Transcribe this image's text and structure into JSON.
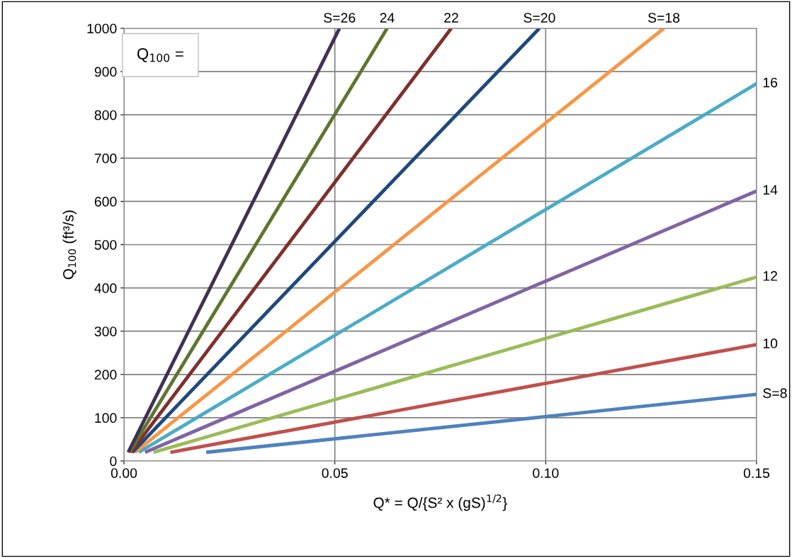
{
  "chart_data": {
    "type": "line",
    "xlabel": "Q* = Q/{S² x (gS)$^{1/2}$}",
    "ylabel": "Q$_{100}$ (ft³/s)",
    "annotations": [
      "Q$_{100}$ ="
    ],
    "xlim": [
      0,
      0.15
    ],
    "ylim": [
      0,
      1000
    ],
    "xticks": [
      {
        "value": 0,
        "label": "0.00"
      },
      {
        "value": 0.05,
        "label": "0.05"
      },
      {
        "value": 0.1,
        "label": "0.10"
      },
      {
        "value": 0.15,
        "label": "0.15"
      }
    ],
    "yticks": [
      0,
      100,
      200,
      300,
      400,
      500,
      600,
      700,
      800,
      900,
      1000
    ],
    "grid": true,
    "legend": false,
    "marker": "none",
    "line_style": "solid",
    "series": [
      {
        "name": "S=8",
        "color": "#4f81bd",
        "x": [
          0.0195,
          0.15
        ],
        "values": [
          20,
          154
        ]
      },
      {
        "name": "10",
        "color": "#c0504d",
        "x": [
          0.011,
          0.15
        ],
        "values": [
          20,
          269
        ]
      },
      {
        "name": "12",
        "color": "#9bbb59",
        "x": [
          0.007,
          0.15
        ],
        "values": [
          20,
          425
        ]
      },
      {
        "name": "14",
        "color": "#8064a2",
        "x": [
          0.005,
          0.15
        ],
        "values": [
          20,
          624
        ]
      },
      {
        "name": "16",
        "color": "#4bacc6",
        "x": [
          0.0035,
          0.15
        ],
        "values": [
          20,
          872
        ]
      },
      {
        "name": "S=18",
        "color": "#f79646",
        "x": [
          0.0026,
          0.128
        ],
        "values": [
          20,
          1000
        ]
      },
      {
        "name": "S=20",
        "color": "#1f497d",
        "x": [
          0.002,
          0.0985
        ],
        "values": [
          20,
          1000
        ]
      },
      {
        "name": "22",
        "color": "#7f2f2d",
        "x": [
          0.0016,
          0.0776
        ],
        "values": [
          20,
          1000
        ]
      },
      {
        "name": "24",
        "color": "#5f7530",
        "x": [
          0.0013,
          0.0624
        ],
        "values": [
          20,
          1000
        ]
      },
      {
        "name": "S=26",
        "color": "#403152",
        "x": [
          0.001,
          0.0511
        ],
        "values": [
          20,
          1000
        ]
      }
    ]
  }
}
